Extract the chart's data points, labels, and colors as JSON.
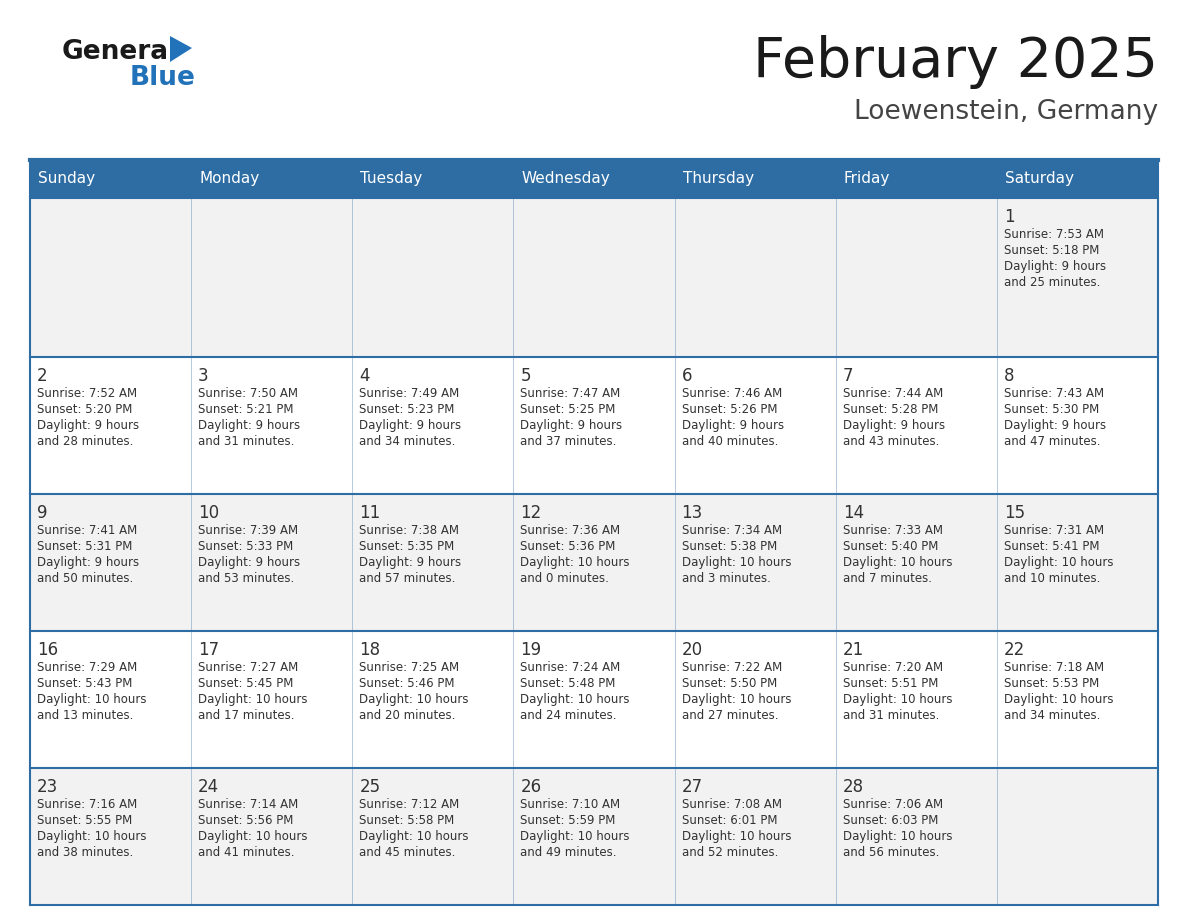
{
  "title": "February 2025",
  "subtitle": "Loewenstein, Germany",
  "days_of_week": [
    "Sunday",
    "Monday",
    "Tuesday",
    "Wednesday",
    "Thursday",
    "Friday",
    "Saturday"
  ],
  "header_bg": "#2E6DA4",
  "header_text": "#FFFFFF",
  "cell_bg_light": "#F2F2F2",
  "cell_bg_white": "#FFFFFF",
  "cell_border": "#2E6DA4",
  "day_num_color": "#333333",
  "info_text_color": "#333333",
  "title_color": "#1a1a1a",
  "subtitle_color": "#444444",
  "logo_general_color": "#1a1a1a",
  "logo_blue_color": "#2272B9",
  "calendar_data": [
    [
      null,
      null,
      null,
      null,
      null,
      null,
      {
        "day": 1,
        "sunrise": "7:53 AM",
        "sunset": "5:18 PM",
        "daylight_h": "9 hours",
        "daylight_m": "25 minutes."
      }
    ],
    [
      {
        "day": 2,
        "sunrise": "7:52 AM",
        "sunset": "5:20 PM",
        "daylight_h": "9 hours",
        "daylight_m": "28 minutes."
      },
      {
        "day": 3,
        "sunrise": "7:50 AM",
        "sunset": "5:21 PM",
        "daylight_h": "9 hours",
        "daylight_m": "31 minutes."
      },
      {
        "day": 4,
        "sunrise": "7:49 AM",
        "sunset": "5:23 PM",
        "daylight_h": "9 hours",
        "daylight_m": "34 minutes."
      },
      {
        "day": 5,
        "sunrise": "7:47 AM",
        "sunset": "5:25 PM",
        "daylight_h": "9 hours",
        "daylight_m": "37 minutes."
      },
      {
        "day": 6,
        "sunrise": "7:46 AM",
        "sunset": "5:26 PM",
        "daylight_h": "9 hours",
        "daylight_m": "40 minutes."
      },
      {
        "day": 7,
        "sunrise": "7:44 AM",
        "sunset": "5:28 PM",
        "daylight_h": "9 hours",
        "daylight_m": "43 minutes."
      },
      {
        "day": 8,
        "sunrise": "7:43 AM",
        "sunset": "5:30 PM",
        "daylight_h": "9 hours",
        "daylight_m": "47 minutes."
      }
    ],
    [
      {
        "day": 9,
        "sunrise": "7:41 AM",
        "sunset": "5:31 PM",
        "daylight_h": "9 hours",
        "daylight_m": "50 minutes."
      },
      {
        "day": 10,
        "sunrise": "7:39 AM",
        "sunset": "5:33 PM",
        "daylight_h": "9 hours",
        "daylight_m": "53 minutes."
      },
      {
        "day": 11,
        "sunrise": "7:38 AM",
        "sunset": "5:35 PM",
        "daylight_h": "9 hours",
        "daylight_m": "57 minutes."
      },
      {
        "day": 12,
        "sunrise": "7:36 AM",
        "sunset": "5:36 PM",
        "daylight_h": "10 hours",
        "daylight_m": "0 minutes."
      },
      {
        "day": 13,
        "sunrise": "7:34 AM",
        "sunset": "5:38 PM",
        "daylight_h": "10 hours",
        "daylight_m": "3 minutes."
      },
      {
        "day": 14,
        "sunrise": "7:33 AM",
        "sunset": "5:40 PM",
        "daylight_h": "10 hours",
        "daylight_m": "7 minutes."
      },
      {
        "day": 15,
        "sunrise": "7:31 AM",
        "sunset": "5:41 PM",
        "daylight_h": "10 hours",
        "daylight_m": "10 minutes."
      }
    ],
    [
      {
        "day": 16,
        "sunrise": "7:29 AM",
        "sunset": "5:43 PM",
        "daylight_h": "10 hours",
        "daylight_m": "13 minutes."
      },
      {
        "day": 17,
        "sunrise": "7:27 AM",
        "sunset": "5:45 PM",
        "daylight_h": "10 hours",
        "daylight_m": "17 minutes."
      },
      {
        "day": 18,
        "sunrise": "7:25 AM",
        "sunset": "5:46 PM",
        "daylight_h": "10 hours",
        "daylight_m": "20 minutes."
      },
      {
        "day": 19,
        "sunrise": "7:24 AM",
        "sunset": "5:48 PM",
        "daylight_h": "10 hours",
        "daylight_m": "24 minutes."
      },
      {
        "day": 20,
        "sunrise": "7:22 AM",
        "sunset": "5:50 PM",
        "daylight_h": "10 hours",
        "daylight_m": "27 minutes."
      },
      {
        "day": 21,
        "sunrise": "7:20 AM",
        "sunset": "5:51 PM",
        "daylight_h": "10 hours",
        "daylight_m": "31 minutes."
      },
      {
        "day": 22,
        "sunrise": "7:18 AM",
        "sunset": "5:53 PM",
        "daylight_h": "10 hours",
        "daylight_m": "34 minutes."
      }
    ],
    [
      {
        "day": 23,
        "sunrise": "7:16 AM",
        "sunset": "5:55 PM",
        "daylight_h": "10 hours",
        "daylight_m": "38 minutes."
      },
      {
        "day": 24,
        "sunrise": "7:14 AM",
        "sunset": "5:56 PM",
        "daylight_h": "10 hours",
        "daylight_m": "41 minutes."
      },
      {
        "day": 25,
        "sunrise": "7:12 AM",
        "sunset": "5:58 PM",
        "daylight_h": "10 hours",
        "daylight_m": "45 minutes."
      },
      {
        "day": 26,
        "sunrise": "7:10 AM",
        "sunset": "5:59 PM",
        "daylight_h": "10 hours",
        "daylight_m": "49 minutes."
      },
      {
        "day": 27,
        "sunrise": "7:08 AM",
        "sunset": "6:01 PM",
        "daylight_h": "10 hours",
        "daylight_m": "52 minutes."
      },
      {
        "day": 28,
        "sunrise": "7:06 AM",
        "sunset": "6:03 PM",
        "daylight_h": "10 hours",
        "daylight_m": "56 minutes."
      },
      null
    ]
  ]
}
